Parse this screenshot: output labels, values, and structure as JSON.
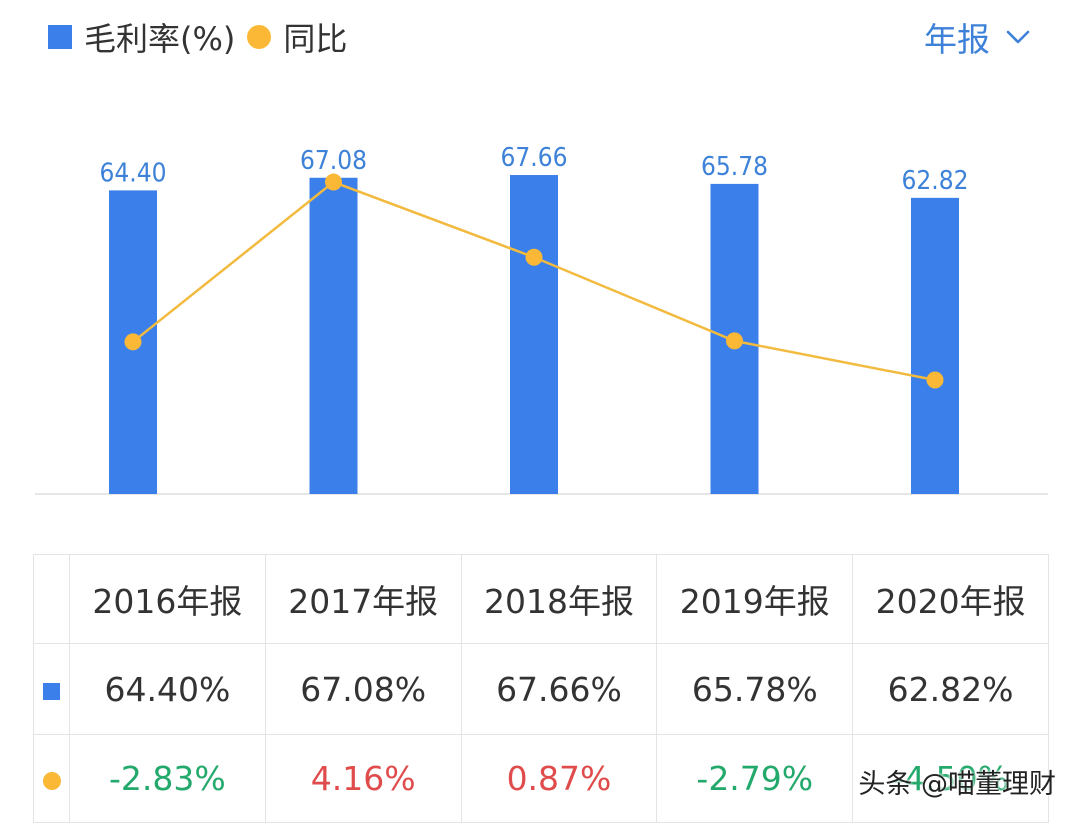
{
  "legend": {
    "bar_label": "毛利率(%)",
    "line_label": "同比"
  },
  "period_selector": {
    "label": "年报",
    "icon": "chevron-down-icon"
  },
  "colors": {
    "bar": "#3b7fea",
    "line": "#f2bb3f",
    "dot": "#fbb836",
    "value_label": "#3d82d8",
    "positive": "#e04c4c",
    "negative": "#22a96b",
    "axis": "#dddddd"
  },
  "chart_data": {
    "type": "bar",
    "categories": [
      "2016年报",
      "2017年报",
      "2018年报",
      "2019年报",
      "2020年报"
    ],
    "series": [
      {
        "name": "毛利率(%)",
        "type": "bar",
        "values": [
          64.4,
          67.08,
          67.66,
          65.78,
          62.82
        ],
        "labels": [
          "64.40",
          "67.08",
          "67.66",
          "65.78",
          "62.82"
        ]
      },
      {
        "name": "同比",
        "type": "line",
        "values": [
          -2.83,
          4.16,
          0.87,
          -2.79,
          -4.5
        ]
      }
    ],
    "bar_ylim": [
      0,
      70
    ],
    "line_ylim": [
      -8,
      6
    ],
    "grid": false
  },
  "table": {
    "headers": [
      "2016年报",
      "2017年报",
      "2018年报",
      "2019年报",
      "2020年报"
    ],
    "margin_row": [
      "64.40%",
      "67.08%",
      "67.66%",
      "65.78%",
      "62.82%"
    ],
    "yoy_row": [
      {
        "text": "-2.83%",
        "sign": "negative"
      },
      {
        "text": "4.16%",
        "sign": "positive"
      },
      {
        "text": "0.87%",
        "sign": "positive"
      },
      {
        "text": "-2.79%",
        "sign": "negative"
      },
      {
        "text": "-4.50%",
        "sign": "negative"
      }
    ]
  },
  "watermark": "头条 @喵董理财"
}
